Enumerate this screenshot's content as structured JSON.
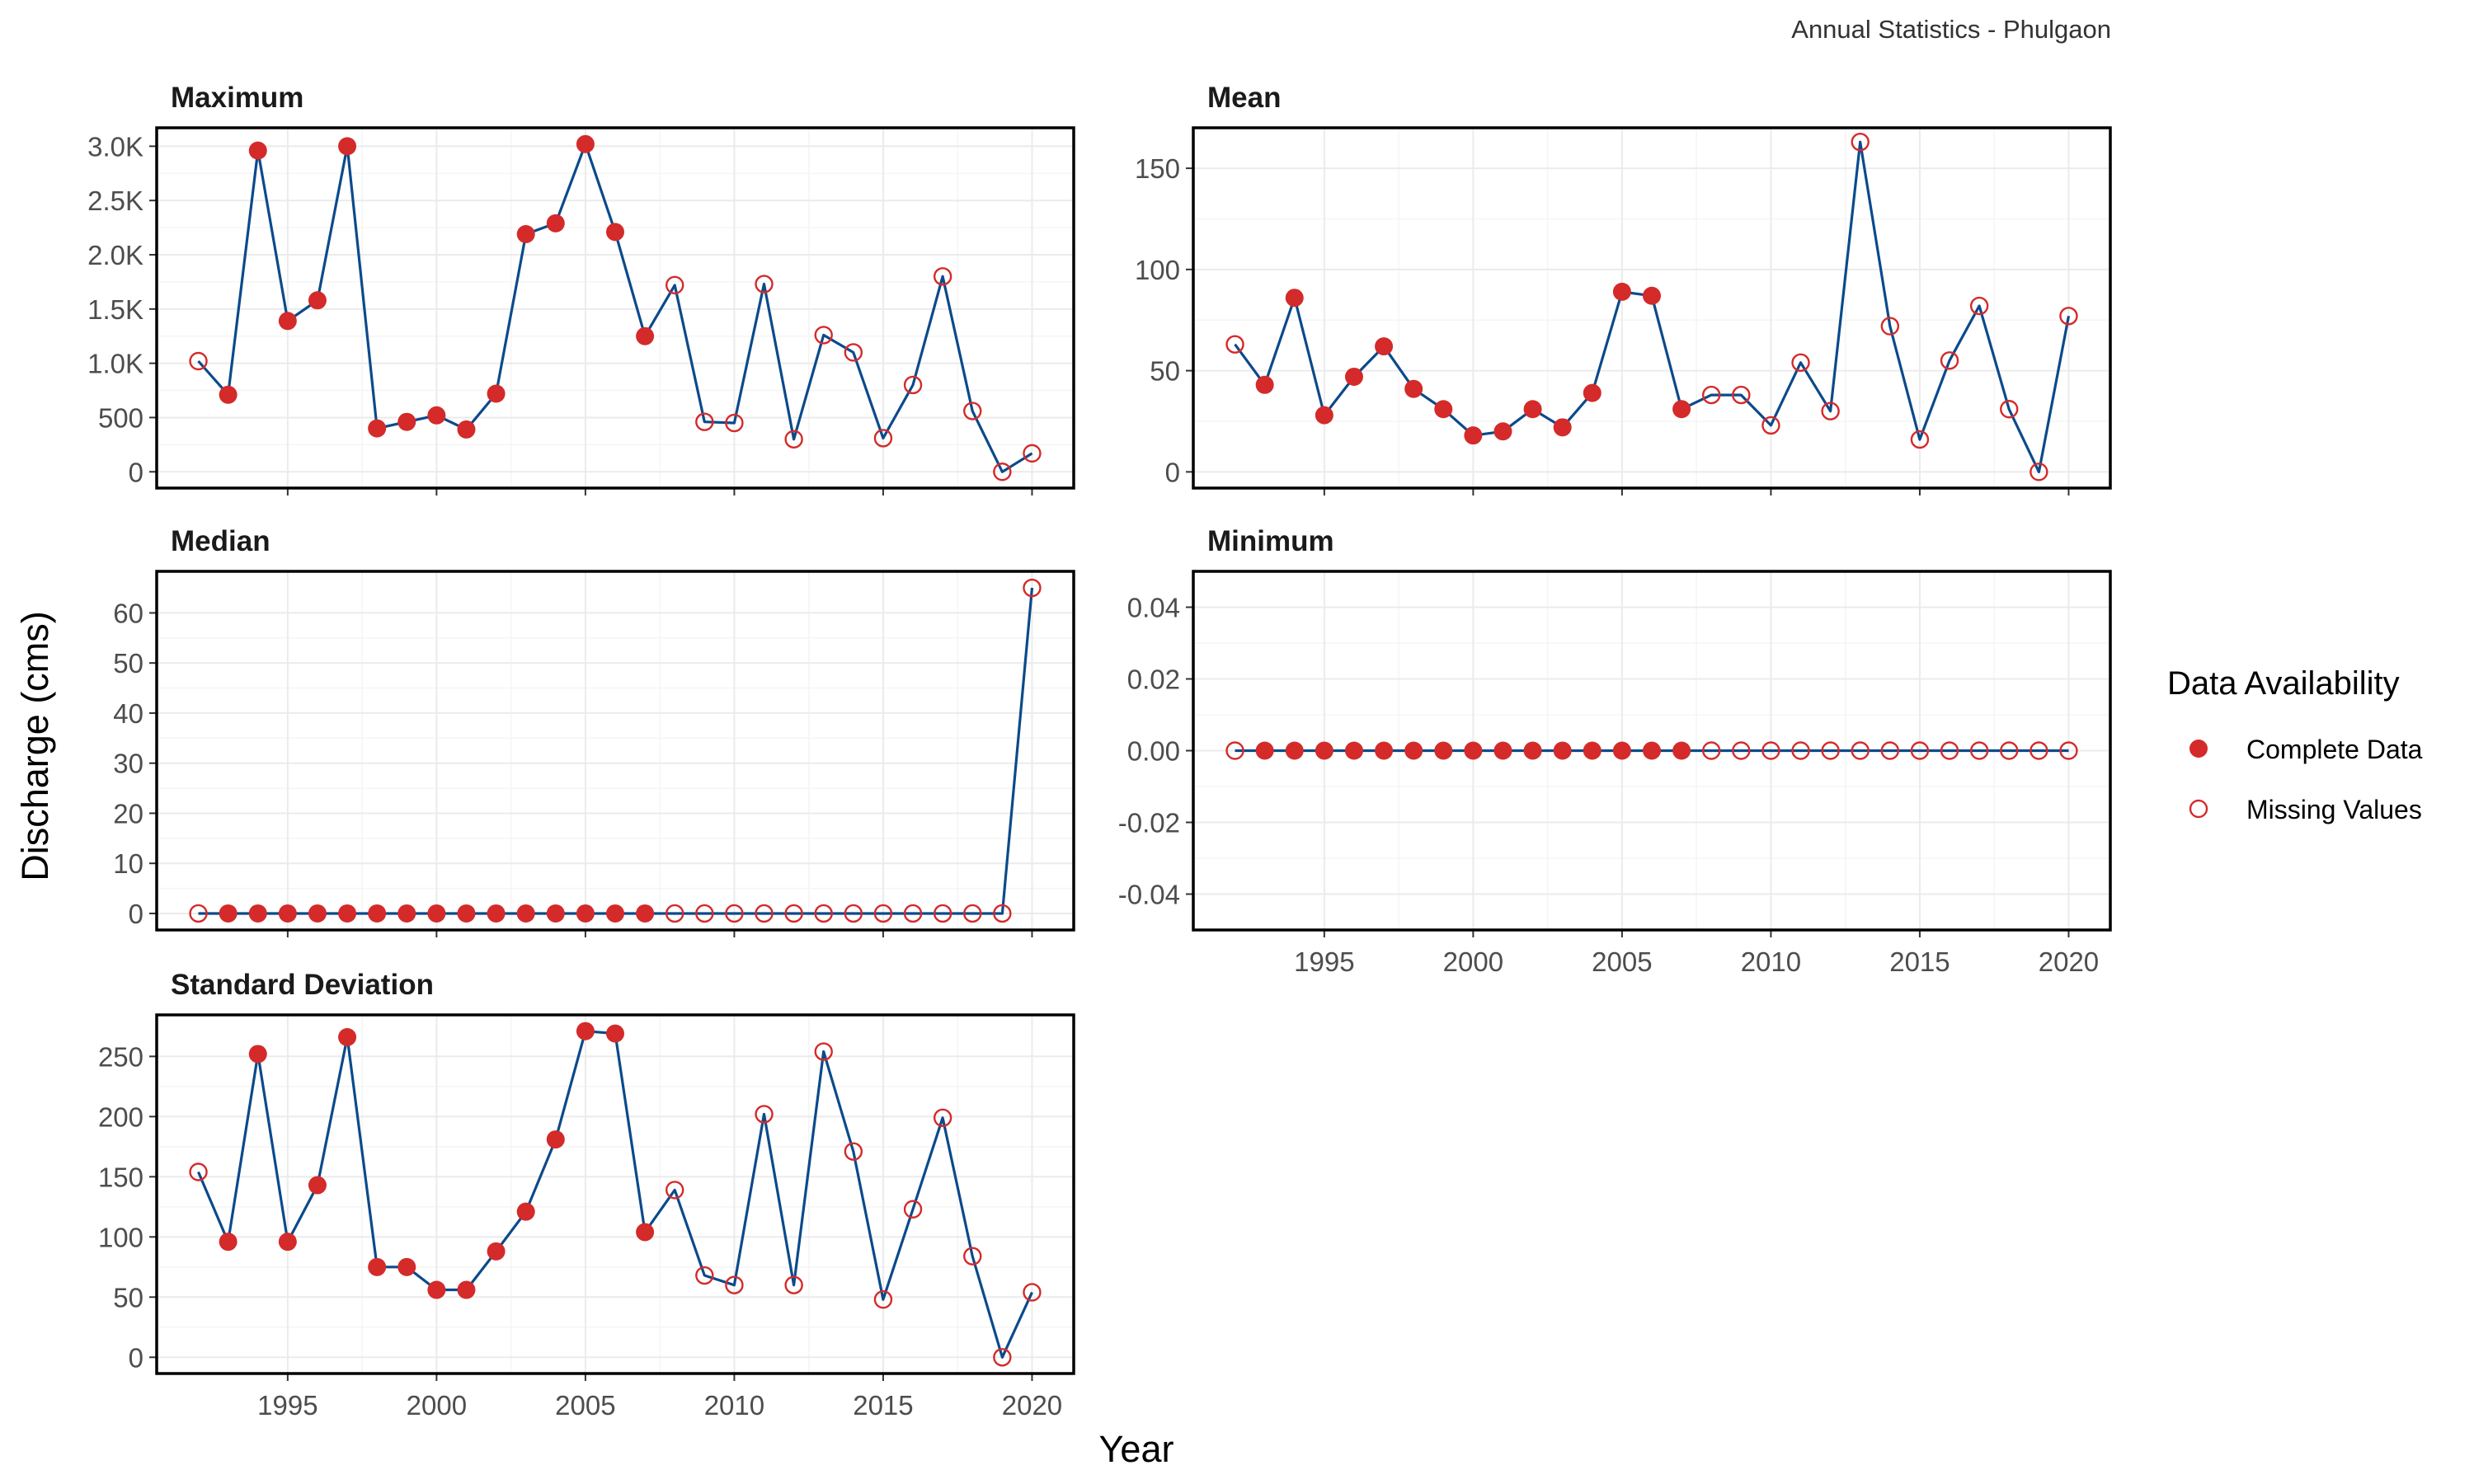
{
  "figure": {
    "caption": "Annual Statistics - Phulgaon",
    "xlabel": "Year",
    "ylabel": "Discharge (cms)"
  },
  "legend": {
    "title": "Data Availability",
    "items": [
      {
        "label": "Complete Data",
        "style": "filled"
      },
      {
        "label": "Missing Values",
        "style": "open"
      }
    ]
  },
  "colors": {
    "line": "#0B4A8B",
    "point": "#D42A2A",
    "panel_border": "#000000",
    "grid_major": "#EBEBEB",
    "grid_minor": "#F5F5F5"
  },
  "chart_data": [
    {
      "type": "line",
      "title": "Maximum",
      "x": [
        1992,
        1993,
        1994,
        1995,
        1996,
        1997,
        1998,
        1999,
        2000,
        2001,
        2002,
        2003,
        2004,
        2005,
        2006,
        2007,
        2008,
        2009,
        2010,
        2011,
        2012,
        2013,
        2014,
        2015,
        2016,
        2017,
        2018,
        2019,
        2020
      ],
      "y": [
        1020,
        710,
        2960,
        1390,
        1580,
        3000,
        400,
        460,
        520,
        390,
        720,
        2190,
        2290,
        3020,
        2210,
        1250,
        1720,
        460,
        450,
        1730,
        300,
        1260,
        1100,
        310,
        800,
        1800,
        560,
        0,
        170
      ],
      "complete": [
        false,
        true,
        true,
        true,
        true,
        true,
        true,
        true,
        true,
        true,
        true,
        true,
        true,
        true,
        true,
        true,
        false,
        false,
        false,
        false,
        false,
        false,
        false,
        false,
        false,
        false,
        false,
        false,
        false
      ],
      "yticks": [
        0,
        500,
        1000,
        1500,
        2000,
        2500,
        3000
      ],
      "yticklabels": [
        "0",
        "500",
        "1.0K",
        "1.5K",
        "2.0K",
        "2.5K",
        "3.0K"
      ],
      "ylim": [
        -150,
        3170
      ],
      "xticks": [
        1995,
        2000,
        2005,
        2010,
        2015,
        2020
      ],
      "xticklabels": [],
      "xlim": [
        1990.6,
        2021.4
      ]
    },
    {
      "type": "line",
      "title": "Mean",
      "x": [
        1992,
        1993,
        1994,
        1995,
        1996,
        1997,
        1998,
        1999,
        2000,
        2001,
        2002,
        2003,
        2004,
        2005,
        2006,
        2007,
        2008,
        2009,
        2010,
        2011,
        2012,
        2013,
        2014,
        2015,
        2016,
        2017,
        2018,
        2019,
        2020
      ],
      "y": [
        63,
        43,
        86,
        28,
        47,
        62,
        41,
        31,
        18,
        20,
        31,
        22,
        39,
        89,
        87,
        31,
        38,
        38,
        23,
        54,
        30,
        163,
        72,
        16,
        55,
        82,
        31,
        0,
        77
      ],
      "complete": [
        false,
        true,
        true,
        true,
        true,
        true,
        true,
        true,
        true,
        true,
        true,
        true,
        true,
        true,
        true,
        true,
        false,
        false,
        false,
        false,
        false,
        false,
        false,
        false,
        false,
        false,
        false,
        false,
        false
      ],
      "yticks": [
        0,
        50,
        100,
        150
      ],
      "yticklabels": [
        "0",
        "50",
        "100",
        "150"
      ],
      "ylim": [
        -8,
        170
      ],
      "xticks": [
        1995,
        2000,
        2005,
        2010,
        2015,
        2020
      ],
      "xticklabels": [],
      "xlim": [
        1990.6,
        2021.4
      ]
    },
    {
      "type": "line",
      "title": "Median",
      "x": [
        1992,
        1993,
        1994,
        1995,
        1996,
        1997,
        1998,
        1999,
        2000,
        2001,
        2002,
        2003,
        2004,
        2005,
        2006,
        2007,
        2008,
        2009,
        2010,
        2011,
        2012,
        2013,
        2014,
        2015,
        2016,
        2017,
        2018,
        2019,
        2020
      ],
      "y": [
        0,
        0,
        0,
        0,
        0,
        0,
        0,
        0,
        0,
        0,
        0,
        0,
        0,
        0,
        0,
        0,
        0,
        0,
        0,
        0,
        0,
        0,
        0,
        0,
        0,
        0,
        0,
        0,
        65
      ],
      "complete": [
        false,
        true,
        true,
        true,
        true,
        true,
        true,
        true,
        true,
        true,
        true,
        true,
        true,
        true,
        true,
        true,
        false,
        false,
        false,
        false,
        false,
        false,
        false,
        false,
        false,
        false,
        false,
        false,
        false
      ],
      "yticks": [
        0,
        10,
        20,
        30,
        40,
        50,
        60
      ],
      "yticklabels": [
        "0",
        "10",
        "20",
        "30",
        "40",
        "50",
        "60"
      ],
      "ylim": [
        -3.3,
        68.3
      ],
      "xticks": [
        1995,
        2000,
        2005,
        2010,
        2015,
        2020
      ],
      "xticklabels": [],
      "xlim": [
        1990.6,
        2021.4
      ]
    },
    {
      "type": "line",
      "title": "Minimum",
      "x": [
        1992,
        1993,
        1994,
        1995,
        1996,
        1997,
        1998,
        1999,
        2000,
        2001,
        2002,
        2003,
        2004,
        2005,
        2006,
        2007,
        2008,
        2009,
        2010,
        2011,
        2012,
        2013,
        2014,
        2015,
        2016,
        2017,
        2018,
        2019,
        2020
      ],
      "y": [
        0,
        0,
        0,
        0,
        0,
        0,
        0,
        0,
        0,
        0,
        0,
        0,
        0,
        0,
        0,
        0,
        0,
        0,
        0,
        0,
        0,
        0,
        0,
        0,
        0,
        0,
        0,
        0,
        0
      ],
      "complete": [
        false,
        true,
        true,
        true,
        true,
        true,
        true,
        true,
        true,
        true,
        true,
        true,
        true,
        true,
        true,
        true,
        false,
        false,
        false,
        false,
        false,
        false,
        false,
        false,
        false,
        false,
        false,
        false,
        false
      ],
      "yticks": [
        -0.04,
        -0.02,
        0,
        0.02,
        0.04
      ],
      "yticklabels": [
        "-0.04",
        "-0.02",
        "0.00",
        "0.02",
        "0.04"
      ],
      "ylim": [
        -0.05,
        0.05
      ],
      "xticks": [
        1995,
        2000,
        2005,
        2010,
        2015,
        2020
      ],
      "xticklabels": [
        "1995",
        "2000",
        "2005",
        "2010",
        "2015",
        "2020"
      ],
      "xlim": [
        1990.6,
        2021.4
      ]
    },
    {
      "type": "line",
      "title": "Standard Deviation",
      "x": [
        1992,
        1993,
        1994,
        1995,
        1996,
        1997,
        1998,
        1999,
        2000,
        2001,
        2002,
        2003,
        2004,
        2005,
        2006,
        2007,
        2008,
        2009,
        2010,
        2011,
        2012,
        2013,
        2014,
        2015,
        2016,
        2017,
        2018,
        2019,
        2020
      ],
      "y": [
        154,
        96,
        252,
        96,
        143,
        266,
        75,
        75,
        56,
        56,
        88,
        121,
        181,
        271,
        269,
        104,
        139,
        68,
        60,
        202,
        60,
        254,
        171,
        48,
        123,
        199,
        84,
        0,
        54
      ],
      "complete": [
        false,
        true,
        true,
        true,
        true,
        true,
        true,
        true,
        true,
        true,
        true,
        true,
        true,
        true,
        true,
        true,
        false,
        false,
        false,
        false,
        false,
        false,
        false,
        false,
        false,
        false,
        false,
        false,
        false
      ],
      "yticks": [
        0,
        50,
        100,
        150,
        200,
        250
      ],
      "yticklabels": [
        "0",
        "50",
        "100",
        "150",
        "200",
        "250"
      ],
      "ylim": [
        -13.5,
        284.5
      ],
      "xticks": [
        1995,
        2000,
        2005,
        2010,
        2015,
        2020
      ],
      "xticklabels": [
        "1995",
        "2000",
        "2005",
        "2010",
        "2015",
        "2020"
      ],
      "xlim": [
        1990.6,
        2021.4
      ]
    }
  ]
}
